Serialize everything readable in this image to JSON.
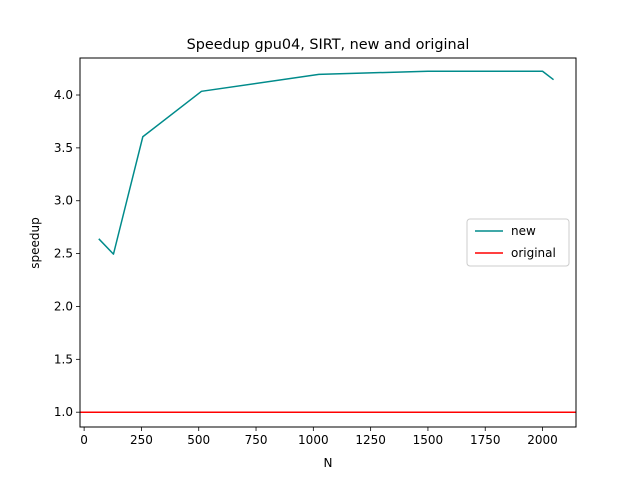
{
  "chart_data": {
    "type": "line",
    "title": "Speedup gpu04, SIRT, new and original",
    "xlabel": "N",
    "ylabel": "speedup",
    "xlim": [
      -18,
      2146
    ],
    "ylim": [
      0.86,
      4.35
    ],
    "x_ticks": [
      0,
      250,
      500,
      750,
      1000,
      1250,
      1500,
      1750,
      2000
    ],
    "y_ticks": [
      1.0,
      1.5,
      2.0,
      2.5,
      3.0,
      3.5,
      4.0
    ],
    "x_tick_labels": [
      "0",
      "250",
      "500",
      "750",
      "1000",
      "1250",
      "1500",
      "1750",
      "2000"
    ],
    "y_tick_labels": [
      "1.0",
      "1.5",
      "2.0",
      "2.5",
      "3.0",
      "3.5",
      "4.0"
    ],
    "grid": false,
    "legend_position": "center-right",
    "series": [
      {
        "name": "new",
        "color": "#008b8b",
        "x": [
          64,
          128,
          256,
          512,
          1024,
          1500,
          2000,
          2048
        ],
        "y": [
          2.64,
          2.495,
          3.605,
          4.035,
          4.195,
          4.225,
          4.225,
          4.145
        ]
      },
      {
        "name": "original",
        "color": "#ff0000",
        "x": [
          -18,
          2146
        ],
        "y": [
          1.0,
          1.0
        ]
      }
    ]
  }
}
